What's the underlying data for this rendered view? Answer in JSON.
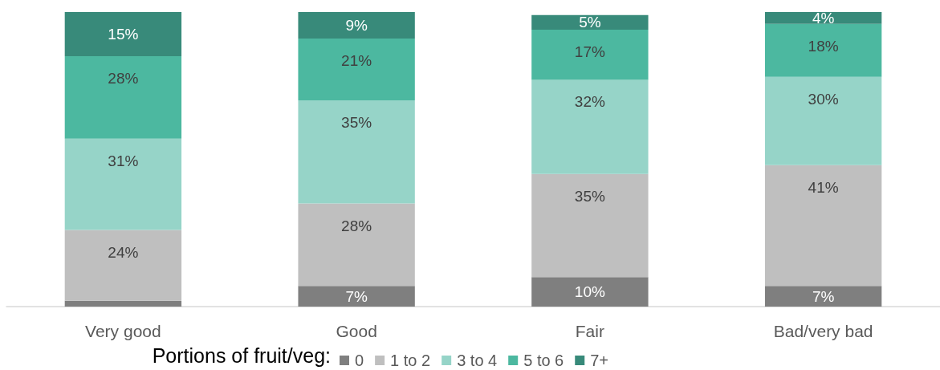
{
  "chart_data": {
    "type": "bar",
    "stacked": true,
    "categories": [
      "Very good",
      "Good",
      "Fair",
      "Bad/very bad"
    ],
    "legend_title": "Portions of fruit/veg:",
    "legend": "bottom",
    "series": [
      {
        "name": "0",
        "color": "#7f7f7f",
        "values": [
          2,
          7,
          10,
          7
        ],
        "value_labels": [
          null,
          "7%",
          "10%",
          "7%"
        ]
      },
      {
        "name": "1 to 2",
        "color": "#bfbfbf",
        "values": [
          24,
          28,
          35,
          41
        ],
        "value_labels": [
          "24%",
          "28%",
          "35%",
          "41%"
        ]
      },
      {
        "name": "3 to 4",
        "color": "#96d4c8",
        "values": [
          31,
          35,
          32,
          30
        ],
        "value_labels": [
          "31%",
          "35%",
          "32%",
          "30%"
        ]
      },
      {
        "name": "5 to 6",
        "color": "#4cb8a0",
        "values": [
          28,
          21,
          17,
          18
        ],
        "value_labels": [
          "28%",
          "21%",
          "17%",
          "18%"
        ]
      },
      {
        "name": "7+",
        "color": "#388a7a",
        "values": [
          15,
          9,
          5,
          4
        ],
        "value_labels": [
          "15%",
          "9%",
          "5%",
          "4%"
        ]
      }
    ]
  }
}
